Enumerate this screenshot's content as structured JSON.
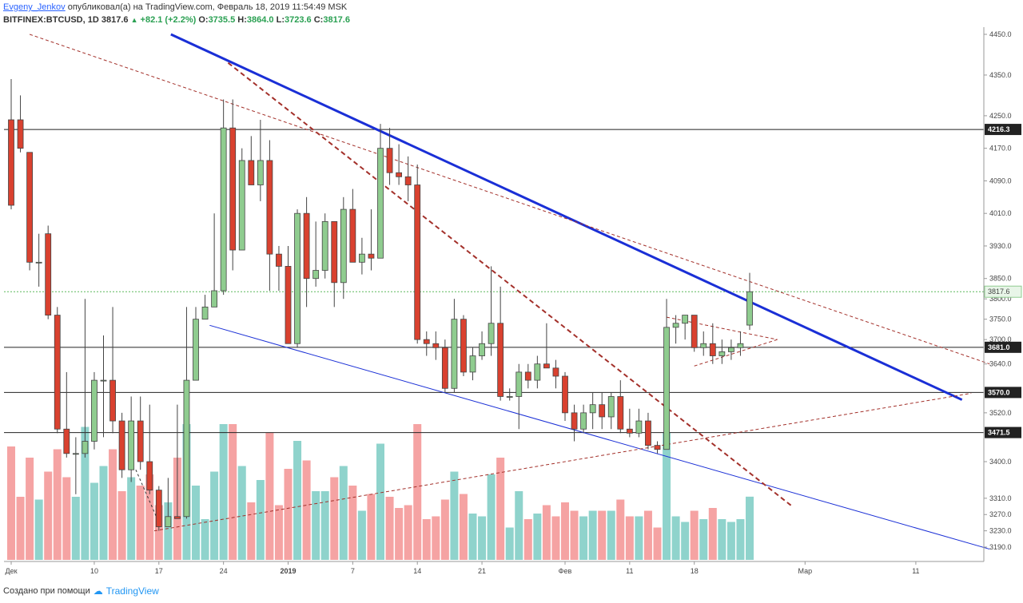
{
  "header": {
    "author": "Evgeny_Jenkov",
    "published_text": "опубликовал(а) на TradingView.com, Февраль 18, 2019 11:54:49 MSK",
    "symbol": "BITFINEX:BTCUSD, 1D",
    "last": "3817.6",
    "change": "+82.1 (+2.2%)",
    "o_label": "O:",
    "o_value": "3735.5",
    "h_label": "H:",
    "h_value": "3864.0",
    "l_label": "L:",
    "l_value": "3723.6",
    "c_label": "C:",
    "c_value": "3817.6"
  },
  "footer": {
    "created_with": "Создано при помощи",
    "brand": "TradingView"
  },
  "colors": {
    "bull": "#8fcc8f",
    "bear": "#d9412f",
    "vol_bull": "#8fd3cc",
    "vol_bear": "#f5a3a3",
    "trend_main": "#1a2fd6",
    "trend_dashed": "#a3302a"
  },
  "chart_data": {
    "type": "candlestick",
    "symbol": "BITFINEX:BTCUSD",
    "interval": "1D",
    "ylim": [
      3160,
      4460
    ],
    "y_ticks": [
      4450,
      4350,
      4250,
      4170,
      4090,
      4010,
      3930,
      3850,
      3800,
      3750,
      3700,
      3640,
      3520,
      3400,
      3310,
      3270,
      3230,
      3190
    ],
    "x_ticks": [
      "Дек",
      "10",
      "17",
      "24",
      "2019",
      "7",
      "14",
      "21",
      "Фев",
      "11",
      "18",
      "Мар",
      "11"
    ],
    "x_tick_index": [
      0,
      9,
      16,
      23,
      30,
      37,
      44,
      51,
      60,
      67,
      74,
      86,
      98
    ],
    "level_labels": [
      "4216.3",
      "3681.0",
      "3570.0",
      "3471.5"
    ],
    "levels": [
      4216.3,
      3681.0,
      3570.0,
      3471.5
    ],
    "last_price_label": "3817.6",
    "last_price": 3817.6,
    "candles": [
      [
        4240,
        4340,
        4030,
        4020
      ],
      [
        4240,
        4300,
        4170,
        4160
      ],
      [
        4160,
        4150,
        3890,
        3870
      ],
      [
        3890,
        3960,
        3890,
        3830
      ],
      [
        3960,
        3980,
        3760,
        3750
      ],
      [
        3760,
        3780,
        3480,
        3470
      ],
      [
        3480,
        3620,
        3420,
        3410
      ],
      [
        3420,
        3460,
        3420,
        3320
      ],
      [
        3420,
        3800,
        3450,
        3410
      ],
      [
        3450,
        3620,
        3600,
        3430
      ],
      [
        3600,
        3710,
        3600,
        3460
      ],
      [
        3600,
        3780,
        3500,
        3470
      ],
      [
        3500,
        3520,
        3380,
        3360
      ],
      [
        3380,
        3560,
        3500,
        3350
      ],
      [
        3500,
        3560,
        3400,
        3380
      ],
      [
        3400,
        3540,
        3330,
        3320
      ],
      [
        3330,
        3340,
        3240,
        3230
      ],
      [
        3240,
        3360,
        3265,
        3240
      ],
      [
        3265,
        3540,
        3260,
        3260
      ],
      [
        3265,
        3780,
        3600,
        3260
      ],
      [
        3600,
        3780,
        3750,
        3600
      ],
      [
        3750,
        3810,
        3780,
        3750
      ],
      [
        3780,
        4010,
        3820,
        3780
      ],
      [
        3820,
        4290,
        4220,
        3810
      ],
      [
        4220,
        4290,
        3920,
        3870
      ],
      [
        3920,
        4170,
        4140,
        3920
      ],
      [
        4140,
        4200,
        4080,
        4080
      ],
      [
        4080,
        4240,
        4140,
        4040
      ],
      [
        4140,
        4190,
        3910,
        3820
      ],
      [
        3910,
        3930,
        3880,
        3820
      ],
      [
        3880,
        3930,
        3690,
        3690
      ],
      [
        3690,
        4020,
        4010,
        3680
      ],
      [
        4010,
        4050,
        3850,
        3780
      ],
      [
        3850,
        3990,
        3870,
        3830
      ],
      [
        3870,
        4010,
        3990,
        3850
      ],
      [
        3990,
        3990,
        3840,
        3780
      ],
      [
        3840,
        4050,
        4020,
        3800
      ],
      [
        4020,
        4070,
        3890,
        3890
      ],
      [
        3890,
        3950,
        3910,
        3860
      ],
      [
        3910,
        4020,
        3900,
        3870
      ],
      [
        3900,
        4230,
        4170,
        3900
      ],
      [
        4170,
        4220,
        4110,
        4080
      ],
      [
        4110,
        4180,
        4100,
        4080
      ],
      [
        4100,
        4150,
        4080,
        4040
      ],
      [
        4080,
        4130,
        3700,
        3690
      ],
      [
        3700,
        3720,
        3690,
        3660
      ],
      [
        3690,
        3720,
        3680,
        3650
      ],
      [
        3680,
        3700,
        3580,
        3570
      ],
      [
        3580,
        3800,
        3750,
        3570
      ],
      [
        3750,
        3760,
        3620,
        3610
      ],
      [
        3620,
        3680,
        3660,
        3600
      ],
      [
        3660,
        3720,
        3690,
        3650
      ],
      [
        3690,
        3880,
        3740,
        3660
      ],
      [
        3740,
        3830,
        3560,
        3550
      ],
      [
        3560,
        3580,
        3560,
        3550
      ],
      [
        3560,
        3640,
        3620,
        3480
      ],
      [
        3620,
        3640,
        3600,
        3580
      ],
      [
        3600,
        3660,
        3640,
        3580
      ],
      [
        3640,
        3740,
        3630,
        3630
      ],
      [
        3630,
        3650,
        3610,
        3580
      ],
      [
        3610,
        3620,
        3520,
        3500
      ],
      [
        3520,
        3540,
        3480,
        3450
      ],
      [
        3480,
        3540,
        3520,
        3470
      ],
      [
        3520,
        3570,
        3540,
        3480
      ],
      [
        3540,
        3570,
        3510,
        3480
      ],
      [
        3510,
        3570,
        3560,
        3480
      ],
      [
        3560,
        3600,
        3480,
        3470
      ],
      [
        3480,
        3530,
        3470,
        3460
      ],
      [
        3470,
        3530,
        3500,
        3460
      ],
      [
        3500,
        3520,
        3440,
        3430
      ],
      [
        3440,
        3450,
        3430,
        3420
      ],
      [
        3430,
        3800,
        3730,
        3430
      ],
      [
        3730,
        3760,
        3740,
        3690
      ],
      [
        3740,
        3750,
        3760,
        3700
      ],
      [
        3760,
        3760,
        3680,
        3670
      ],
      [
        3680,
        3720,
        3690,
        3660
      ],
      [
        3690,
        3740,
        3660,
        3640
      ],
      [
        3660,
        3700,
        3670,
        3640
      ],
      [
        3670,
        3700,
        3680,
        3650
      ],
      [
        3680,
        3720,
        3690,
        3660
      ],
      [
        3735.5,
        3864.0,
        3817.6,
        3723.6
      ]
    ]
  }
}
